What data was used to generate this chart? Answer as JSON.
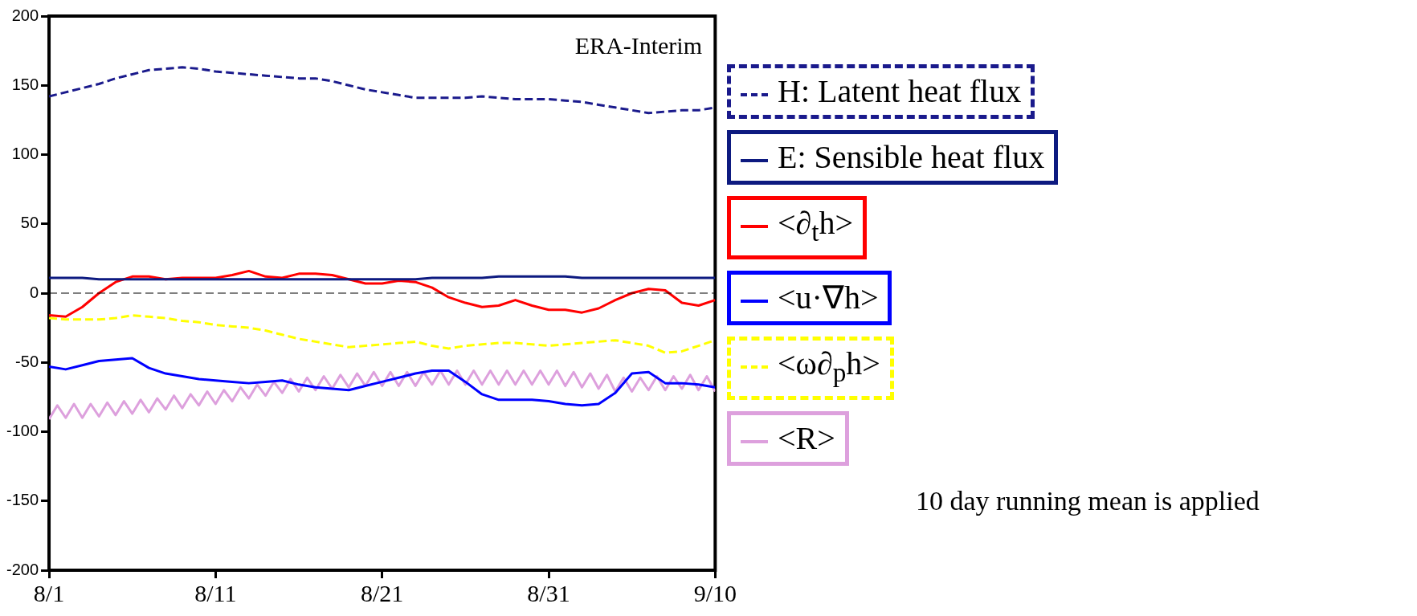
{
  "chart_data": {
    "type": "line",
    "x": [
      "--08-01",
      "--08-02",
      "--08-03",
      "--08-04",
      "--08-05",
      "--08-06",
      "--08-07",
      "--08-08",
      "--08-09",
      "--08-10",
      "--08-11",
      "--08-12",
      "--08-13",
      "--08-14",
      "--08-15",
      "--08-16",
      "--08-17",
      "--08-18",
      "--08-19",
      "--08-20",
      "--08-21",
      "--08-22",
      "--08-23",
      "--08-24",
      "--08-25",
      "--08-26",
      "--08-27",
      "--08-28",
      "--08-29",
      "--08-30",
      "--08-31",
      "--09-01",
      "--09-02",
      "--09-03",
      "--09-04",
      "--09-05",
      "--09-06",
      "--09-07",
      "--09-08",
      "--09-09",
      "--09-10"
    ],
    "xlim": [
      "--08-01",
      "--09-10"
    ],
    "xticks": [
      {
        "value": "--08-01",
        "label": "8/1"
      },
      {
        "value": "--08-11",
        "label": "8/11"
      },
      {
        "value": "--08-21",
        "label": "8/21"
      },
      {
        "value": "--08-31",
        "label": "8/31"
      },
      {
        "value": "--09-10",
        "label": "9/10"
      }
    ],
    "ylim": [
      -200,
      200
    ],
    "yticks": [
      -200,
      -150,
      -100,
      -50,
      0,
      50,
      100,
      150,
      200
    ],
    "grid": false,
    "legend": "right",
    "series": [
      {
        "name": "H: Latent heat flux",
        "color": "#1a1a8c",
        "line_style": "dashed",
        "values": [
          142,
          145,
          148,
          151,
          155,
          158,
          161,
          162,
          163,
          162,
          160,
          159,
          158,
          157,
          156,
          155,
          155,
          153,
          150,
          147,
          145,
          143,
          141,
          141,
          141,
          141,
          142,
          141,
          140,
          140,
          140,
          139,
          138,
          136,
          134,
          132,
          130,
          131,
          132,
          132,
          134
        ]
      },
      {
        "name": "E: Sensible heat flux",
        "color": "#0d1a80",
        "line_style": "solid",
        "values": [
          11,
          11,
          11,
          10,
          10,
          10,
          10,
          10,
          10,
          10,
          10,
          10,
          10,
          10,
          10,
          10,
          10,
          10,
          10,
          10,
          10,
          10,
          10,
          11,
          11,
          11,
          11,
          12,
          12,
          12,
          12,
          12,
          11,
          11,
          11,
          11,
          11,
          11,
          11,
          11,
          11
        ]
      },
      {
        "name": "<∂$_{t}$h>",
        "color": "#ff0000",
        "line_style": "solid",
        "values": [
          -16,
          -17,
          -10,
          0,
          8,
          12,
          12,
          10,
          11,
          11,
          11,
          13,
          16,
          12,
          11,
          14,
          14,
          13,
          10,
          7,
          7,
          9,
          8,
          4,
          -3,
          -7,
          -10,
          -9,
          -5,
          -9,
          -12,
          -12,
          -14,
          -11,
          -5,
          0,
          3,
          2,
          -7,
          -9,
          -5
        ]
      },
      {
        "name": "<u·∇h>",
        "color": "#0000ff",
        "line_style": "solid",
        "values": [
          -53,
          -55,
          -52,
          -49,
          -48,
          -47,
          -54,
          -58,
          -60,
          -62,
          -63,
          -64,
          -65,
          -64,
          -63,
          -66,
          -68,
          -69,
          -70,
          -67,
          -64,
          -61,
          -58,
          -56,
          -56,
          -64,
          -73,
          -77,
          -77,
          -77,
          -78,
          -80,
          -81,
          -80,
          -72,
          -58,
          -57,
          -65,
          -65,
          -66,
          -68
        ]
      },
      {
        "name": "<ω∂$_{p}$h>",
        "color": "#ffff00",
        "line_style": "dashed",
        "values": [
          -18,
          -19,
          -19,
          -19,
          -18,
          -16,
          -17,
          -18,
          -20,
          -21,
          -23,
          -24,
          -25,
          -27,
          -30,
          -33,
          -35,
          -37,
          -39,
          -38,
          -37,
          -36,
          -35,
          -38,
          -40,
          -38,
          -37,
          -36,
          -36,
          -37,
          -38,
          -37,
          -36,
          -35,
          -34,
          -36,
          -38,
          -43,
          -42,
          -38,
          -34
        ]
      },
      {
        "name": "<R>",
        "color": "#dda0dd",
        "line_style": "solid",
        "x": [
          "--08-01",
          "--08-01T12:00",
          "--08-02",
          "--08-02T12:00",
          "--08-03",
          "--08-03T12:00",
          "--08-04",
          "--08-04T12:00",
          "--08-05",
          "--08-05T12:00",
          "--08-06",
          "--08-06T12:00",
          "--08-07",
          "--08-07T12:00",
          "--08-08",
          "--08-08T12:00",
          "--08-09",
          "--08-09T12:00",
          "--08-10",
          "--08-10T12:00",
          "--08-11",
          "--08-11T12:00",
          "--08-12",
          "--08-12T12:00",
          "--08-13",
          "--08-13T12:00",
          "--08-14",
          "--08-14T12:00",
          "--08-15",
          "--08-15T12:00",
          "--08-16",
          "--08-16T12:00",
          "--08-17",
          "--08-17T12:00",
          "--08-18",
          "--08-18T12:00",
          "--08-19",
          "--08-19T12:00",
          "--08-20",
          "--08-20T12:00",
          "--08-21",
          "--08-21T12:00",
          "--08-22",
          "--08-22T12:00",
          "--08-23",
          "--08-23T12:00",
          "--08-24",
          "--08-24T12:00",
          "--08-25",
          "--08-25T12:00",
          "--08-26",
          "--08-26T12:00",
          "--08-27",
          "--08-27T12:00",
          "--08-28",
          "--08-28T12:00",
          "--08-29",
          "--08-29T12:00",
          "--08-30",
          "--08-30T12:00",
          "--08-31",
          "--08-31T12:00",
          "--09-01",
          "--09-01T12:00",
          "--09-02",
          "--09-02T12:00",
          "--09-03",
          "--09-03T12:00",
          "--09-04",
          "--09-04T12:00",
          "--09-05",
          "--09-05T12:00",
          "--09-06",
          "--09-06T12:00",
          "--09-07",
          "--09-07T12:00",
          "--09-08",
          "--09-08T12:00",
          "--09-09",
          "--09-09T12:00",
          "--09-10"
        ],
        "values": [
          -91,
          -81,
          -90,
          -80,
          -90,
          -80,
          -89,
          -79,
          -88,
          -78,
          -87,
          -77,
          -86,
          -76,
          -84,
          -74,
          -83,
          -73,
          -81,
          -71,
          -80,
          -70,
          -78,
          -68,
          -76,
          -66,
          -74,
          -64,
          -72,
          -62,
          -71,
          -61,
          -70,
          -60,
          -69,
          -59,
          -68,
          -58,
          -67,
          -57,
          -67,
          -57,
          -67,
          -57,
          -67,
          -57,
          -66,
          -56,
          -66,
          -56,
          -66,
          -56,
          -66,
          -56,
          -66,
          -56,
          -66,
          -56,
          -66,
          -56,
          -66,
          -56,
          -67,
          -57,
          -68,
          -58,
          -69,
          -59,
          -71,
          -61,
          -71,
          -61,
          -70,
          -60,
          -70,
          -60,
          -69,
          -59,
          -70,
          -60,
          -71
        ]
      }
    ],
    "ref_lines": [
      {
        "axis": "y",
        "value": 0,
        "color": "#000000",
        "line_style": "dashed"
      }
    ],
    "annotations": [
      "ERA-Interim",
      "10 day running mean is applied"
    ]
  }
}
